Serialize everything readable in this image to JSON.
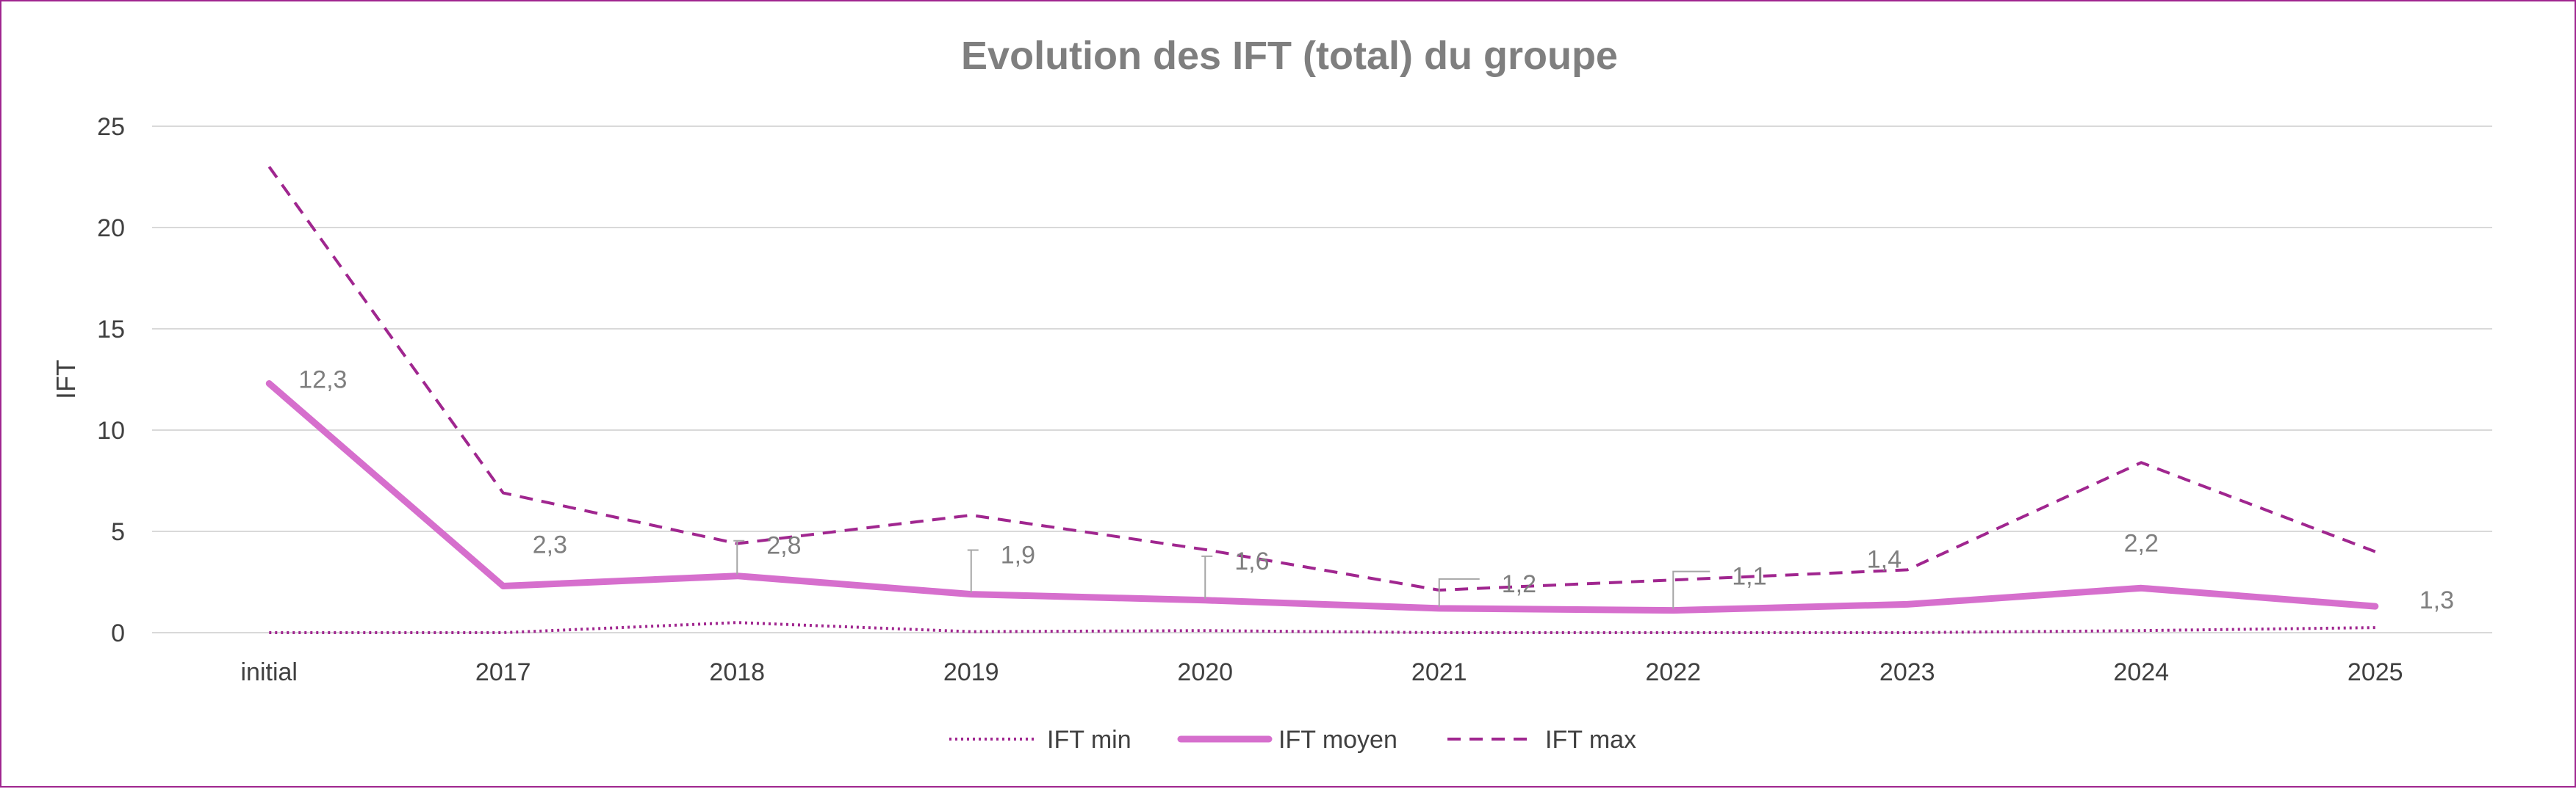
{
  "chart_data": {
    "type": "line",
    "title": "Evolution des IFT (total) du groupe",
    "xlabel": "",
    "ylabel": "IFT",
    "categories": [
      "initial",
      "2017",
      "2018",
      "2019",
      "2020",
      "2021",
      "2022",
      "2023",
      "2024",
      "2025"
    ],
    "ylim": [
      0,
      25
    ],
    "yticks": [
      0,
      5,
      10,
      15,
      20,
      25
    ],
    "grid": true,
    "legend_position": "bottom",
    "series": [
      {
        "name": "IFT min",
        "style": "dotted",
        "color": "#a0268f",
        "values": [
          0,
          0,
          0.5,
          0.05,
          0.1,
          0,
          0,
          0,
          0.1,
          0.25
        ]
      },
      {
        "name": "IFT moyen",
        "style": "solid-thick",
        "color": "#d66fcd",
        "values": [
          12.3,
          2.3,
          2.8,
          1.9,
          1.6,
          1.2,
          1.1,
          1.4,
          2.2,
          1.3
        ],
        "data_labels": [
          "12,3",
          "2,3",
          "2,8",
          "1,9",
          "1,6",
          "1,2",
          "1,1",
          "1,4",
          "2,2",
          "1,3"
        ]
      },
      {
        "name": "IFT max",
        "style": "dashed",
        "color": "#a0268f",
        "values": [
          23,
          6.9,
          4.4,
          5.8,
          4.1,
          2.1,
          2.6,
          3.1,
          8.4,
          4.0
        ]
      }
    ]
  }
}
